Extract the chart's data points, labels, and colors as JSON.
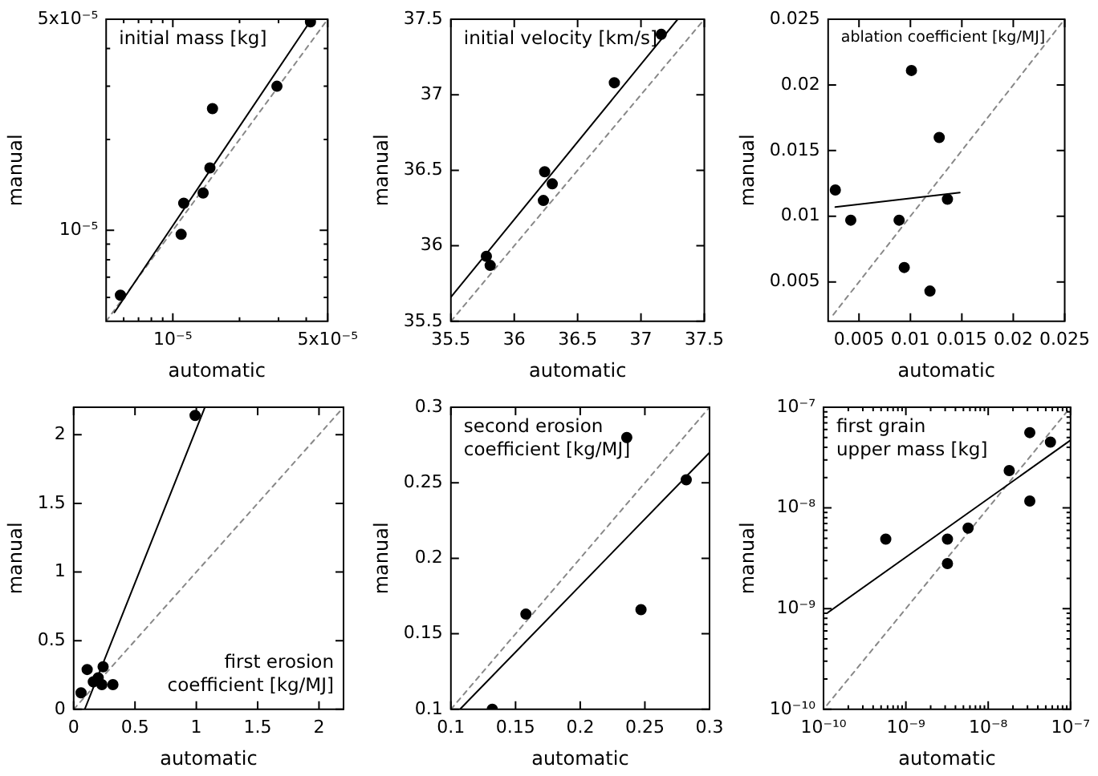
{
  "chart_data": [
    {
      "type": "scatter",
      "title": "initial mass [kg]",
      "xlabel": "automatic",
      "ylabel": "manual",
      "log": "xy",
      "xlim": [
        5e-06,
        5e-05
      ],
      "ylim": [
        5e-06,
        5e-05
      ],
      "xticks": [
        {
          "value": 6e-06,
          "label": null
        },
        {
          "value": 7e-06,
          "label": null
        },
        {
          "value": 8e-06,
          "label": null
        },
        {
          "value": 9e-06,
          "label": null
        },
        {
          "value": 1e-05,
          "label": "10⁻⁵"
        },
        {
          "value": 2e-05,
          "label": null
        },
        {
          "value": 3e-05,
          "label": null
        },
        {
          "value": 4e-05,
          "label": null
        },
        {
          "value": 5e-05,
          "label": "5x10⁻⁵"
        }
      ],
      "yticks": [
        {
          "value": 6e-06,
          "label": null
        },
        {
          "value": 7e-06,
          "label": null
        },
        {
          "value": 8e-06,
          "label": null
        },
        {
          "value": 9e-06,
          "label": null
        },
        {
          "value": 1e-05,
          "label": "10⁻⁵"
        },
        {
          "value": 2e-05,
          "label": null
        },
        {
          "value": 3e-05,
          "label": null
        },
        {
          "value": 4e-05,
          "label": null
        },
        {
          "value": 5e-05,
          "label": "5x10⁻⁵"
        }
      ],
      "series": [
        {
          "type": "scatter",
          "marker": "circle",
          "color": "#000000",
          "x": [
            5.8e-06,
            1.09e-05,
            1.12e-05,
            1.37e-05,
            1.47e-05,
            1.51e-05,
            2.95e-05,
            4.18e-05
          ],
          "values": [
            6.1e-06,
            9.7e-06,
            1.23e-05,
            1.33e-05,
            1.61e-05,
            2.53e-05,
            3e-05,
            4.9e-05
          ]
        },
        {
          "type": "line",
          "color": "#000000",
          "line_style": "solid",
          "x": [
            5.45e-06,
            4.23e-05
          ],
          "values": [
            5.35e-06,
            5e-05
          ]
        },
        {
          "type": "line",
          "color": "#888888",
          "line_style": "dashed",
          "x": [
            5e-06,
            5e-05
          ],
          "values": [
            5e-06,
            5e-05
          ]
        }
      ]
    },
    {
      "type": "scatter",
      "title": "initial velocity [km/s]",
      "xlabel": "automatic",
      "ylabel": "manual",
      "xlim": [
        35.5,
        37.5
      ],
      "ylim": [
        35.5,
        37.5
      ],
      "xticks": [
        35.5,
        36,
        36.5,
        37,
        37.5
      ],
      "yticks": [
        35.5,
        36,
        36.5,
        37,
        37.5
      ],
      "series": [
        {
          "type": "scatter",
          "marker": "circle",
          "color": "#000000",
          "x": [
            35.78,
            35.81,
            36.23,
            36.24,
            36.3,
            36.79,
            37.16
          ],
          "values": [
            35.93,
            35.87,
            36.3,
            36.49,
            36.41,
            37.08,
            37.4
          ]
        },
        {
          "type": "line",
          "color": "#000000",
          "line_style": "solid",
          "x": [
            35.5,
            37.29
          ],
          "values": [
            35.66,
            37.5
          ]
        },
        {
          "type": "line",
          "color": "#888888",
          "line_style": "dashed",
          "x": [
            35.5,
            37.5
          ],
          "values": [
            35.5,
            37.5
          ]
        }
      ]
    },
    {
      "type": "scatter",
      "title": "ablation coefficient [kg/MJ]",
      "xlabel": "automatic",
      "ylabel": "manual",
      "xlim": [
        0.002,
        0.025
      ],
      "ylim": [
        0.002,
        0.025
      ],
      "xticks": [
        0.005,
        0.01,
        0.015,
        0.02,
        0.025
      ],
      "yticks": [
        0.005,
        0.01,
        0.015,
        0.02,
        0.025
      ],
      "series": [
        {
          "type": "scatter",
          "marker": "circle",
          "color": "#000000",
          "x": [
            0.0027,
            0.0042,
            0.0089,
            0.0094,
            0.0101,
            0.0119,
            0.0128,
            0.0136
          ],
          "values": [
            0.012,
            0.0097,
            0.0097,
            0.0061,
            0.0211,
            0.0043,
            0.016,
            0.0113
          ]
        },
        {
          "type": "line",
          "color": "#000000",
          "line_style": "solid",
          "x": [
            0.0027,
            0.0148
          ],
          "values": [
            0.0107,
            0.0118
          ]
        },
        {
          "type": "line",
          "color": "#888888",
          "line_style": "dashed",
          "x": [
            0.0025,
            0.025
          ],
          "values": [
            0.0025,
            0.025
          ]
        }
      ]
    },
    {
      "type": "scatter",
      "title": "first erosion\ncoefficient [kg/MJ]",
      "xlabel": "automatic",
      "ylabel": "manual",
      "xlim": [
        0,
        2.2
      ],
      "ylim": [
        0,
        2.2
      ],
      "xticks": [
        0,
        0.5,
        1,
        1.5,
        2
      ],
      "yticks": [
        0,
        0.5,
        1,
        1.5,
        2
      ],
      "series": [
        {
          "type": "scatter",
          "marker": "circle",
          "color": "#000000",
          "x": [
            0.06,
            0.11,
            0.16,
            0.2,
            0.24,
            0.23,
            0.32,
            0.99
          ],
          "values": [
            0.12,
            0.29,
            0.2,
            0.23,
            0.31,
            0.18,
            0.18,
            2.14
          ]
        },
        {
          "type": "line",
          "color": "#000000",
          "line_style": "solid",
          "x": [
            0.09,
            1.07
          ],
          "values": [
            0,
            2.2
          ]
        },
        {
          "type": "line",
          "color": "#888888",
          "line_style": "dashed",
          "x": [
            0,
            2.2
          ],
          "values": [
            0,
            2.2
          ]
        }
      ]
    },
    {
      "type": "scatter",
      "title": "second erosion\ncoefficient [kg/MJ]",
      "xlabel": "automatic",
      "ylabel": "manual",
      "xlim": [
        0.1,
        0.3
      ],
      "ylim": [
        0.1,
        0.3
      ],
      "xticks": [
        0.1,
        0.15,
        0.2,
        0.25,
        0.3
      ],
      "yticks": [
        0.1,
        0.15,
        0.2,
        0.25,
        0.3
      ],
      "series": [
        {
          "type": "scatter",
          "marker": "circle",
          "color": "#000000",
          "x": [
            0.132,
            0.158,
            0.236,
            0.247,
            0.282
          ],
          "values": [
            0.1,
            0.163,
            0.28,
            0.166,
            0.252
          ]
        },
        {
          "type": "line",
          "color": "#000000",
          "line_style": "solid",
          "x": [
            0.107,
            0.3
          ],
          "values": [
            0.1,
            0.27
          ]
        },
        {
          "type": "line",
          "color": "#888888",
          "line_style": "dashed",
          "x": [
            0.1,
            0.3
          ],
          "values": [
            0.1,
            0.3
          ]
        }
      ]
    },
    {
      "type": "scatter",
      "title": "first grain\nupper mass [kg]",
      "xlabel": "automatic",
      "ylabel": "manual",
      "log": "xy",
      "xlim": [
        1e-10,
        1e-07
      ],
      "ylim": [
        1e-10,
        1e-07
      ],
      "xticks": [
        {
          "value": 1e-10,
          "label": "10⁻¹⁰"
        },
        {
          "value": 2e-10,
          "label": null
        },
        {
          "value": 3e-10,
          "label": null
        },
        {
          "value": 4e-10,
          "label": null
        },
        {
          "value": 5e-10,
          "label": null
        },
        {
          "value": 6e-10,
          "label": null
        },
        {
          "value": 7e-10,
          "label": null
        },
        {
          "value": 8e-10,
          "label": null
        },
        {
          "value": 9e-10,
          "label": null
        },
        {
          "value": 1e-09,
          "label": "10⁻⁹"
        },
        {
          "value": 2e-09,
          "label": null
        },
        {
          "value": 3e-09,
          "label": null
        },
        {
          "value": 4e-09,
          "label": null
        },
        {
          "value": 5e-09,
          "label": null
        },
        {
          "value": 6e-09,
          "label": null
        },
        {
          "value": 7e-09,
          "label": null
        },
        {
          "value": 8e-09,
          "label": null
        },
        {
          "value": 9e-09,
          "label": null
        },
        {
          "value": 1e-08,
          "label": "10⁻⁸"
        },
        {
          "value": 2e-08,
          "label": null
        },
        {
          "value": 3e-08,
          "label": null
        },
        {
          "value": 4e-08,
          "label": null
        },
        {
          "value": 5e-08,
          "label": null
        },
        {
          "value": 6e-08,
          "label": null
        },
        {
          "value": 7e-08,
          "label": null
        },
        {
          "value": 8e-08,
          "label": null
        },
        {
          "value": 9e-08,
          "label": null
        },
        {
          "value": 1e-07,
          "label": "10⁻⁷"
        }
      ],
      "yticks": [
        {
          "value": 1e-10,
          "label": "10⁻¹⁰"
        },
        {
          "value": 2e-10,
          "label": null
        },
        {
          "value": 3e-10,
          "label": null
        },
        {
          "value": 4e-10,
          "label": null
        },
        {
          "value": 5e-10,
          "label": null
        },
        {
          "value": 6e-10,
          "label": null
        },
        {
          "value": 7e-10,
          "label": null
        },
        {
          "value": 8e-10,
          "label": null
        },
        {
          "value": 9e-10,
          "label": null
        },
        {
          "value": 1e-09,
          "label": "10⁻⁹"
        },
        {
          "value": 2e-09,
          "label": null
        },
        {
          "value": 3e-09,
          "label": null
        },
        {
          "value": 4e-09,
          "label": null
        },
        {
          "value": 5e-09,
          "label": null
        },
        {
          "value": 6e-09,
          "label": null
        },
        {
          "value": 7e-09,
          "label": null
        },
        {
          "value": 8e-09,
          "label": null
        },
        {
          "value": 9e-09,
          "label": null
        },
        {
          "value": 1e-08,
          "label": "10⁻⁸"
        },
        {
          "value": 2e-08,
          "label": null
        },
        {
          "value": 3e-08,
          "label": null
        },
        {
          "value": 4e-08,
          "label": null
        },
        {
          "value": 5e-08,
          "label": null
        },
        {
          "value": 6e-08,
          "label": null
        },
        {
          "value": 7e-08,
          "label": null
        },
        {
          "value": 8e-08,
          "label": null
        },
        {
          "value": 9e-08,
          "label": null
        },
        {
          "value": 1e-07,
          "label": "10⁻⁷"
        }
      ],
      "series": [
        {
          "type": "scatter",
          "marker": "circle",
          "color": "#000000",
          "x": [
            5.7e-10,
            3.2e-09,
            3.2e-09,
            5.7e-09,
            1.8e-08,
            3.2e-08,
            3.2e-08,
            5.7e-08
          ],
          "values": [
            4.9e-09,
            4.9e-09,
            2.8e-09,
            6.3e-09,
            2.35e-08,
            5.6e-08,
            1.17e-08,
            4.5e-08
          ]
        },
        {
          "type": "line",
          "color": "#000000",
          "line_style": "solid",
          "x": [
            1.1e-10,
            1e-07
          ],
          "values": [
            9e-10,
            4.7e-08
          ]
        },
        {
          "type": "line",
          "color": "#888888",
          "line_style": "dashed",
          "x": [
            1.1e-10,
            1e-07
          ],
          "values": [
            1.1e-10,
            1e-07
          ]
        }
      ]
    }
  ]
}
